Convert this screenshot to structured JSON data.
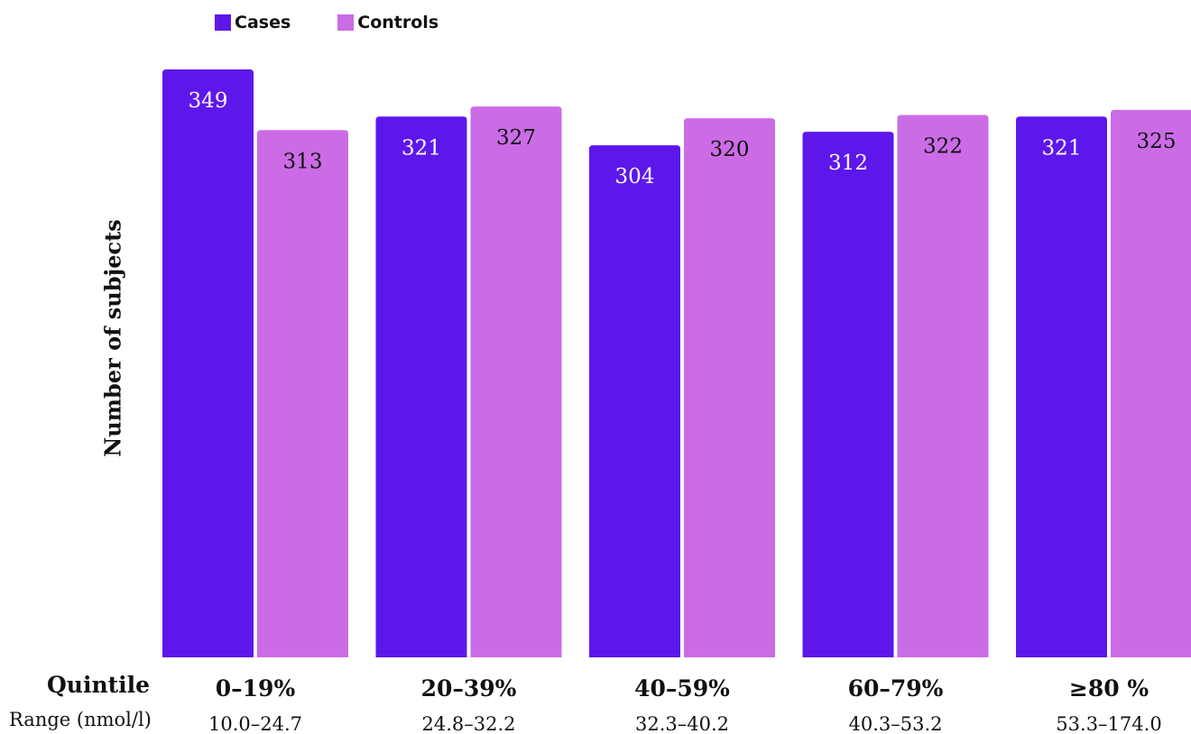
{
  "chart_data": {
    "type": "bar",
    "categories": [
      "0–19%",
      "20–39%",
      "40–59%",
      "60–79%",
      "≥80 %"
    ],
    "ranges": [
      "10.0–24.7",
      "24.8–32.2",
      "32.3–40.2",
      "40.3–53.2",
      "53.3–174.0"
    ],
    "series": [
      {
        "name": "Cases",
        "color": "#5e17eb",
        "values": [
          349,
          321,
          304,
          312,
          321
        ]
      },
      {
        "name": "Controls",
        "color": "#cb6ce6",
        "values": [
          313,
          327,
          320,
          322,
          325
        ]
      }
    ],
    "ylabel": "Number of subjects",
    "row_labels": {
      "quintile": "Quintile",
      "range": "Range (nmol/l)"
    },
    "ylim": [
      0,
      349
    ],
    "grid": false,
    "legend": "top-left"
  }
}
